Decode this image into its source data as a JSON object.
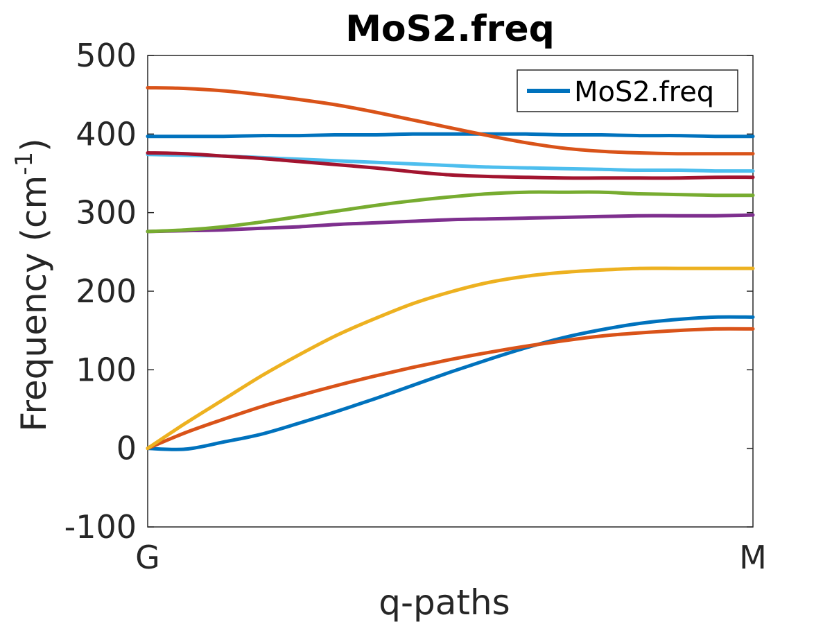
{
  "chart_data": {
    "type": "line",
    "title": "MoS2.freq",
    "xlabel": "q-paths",
    "ylabel": {
      "main": "Frequency (cm",
      "superscript": "-1",
      "close": ")"
    },
    "xlim": [
      0,
      1
    ],
    "ylim": [
      -100,
      500
    ],
    "x_ticks": [
      {
        "value": 0,
        "label": "G"
      },
      {
        "value": 1,
        "label": "M"
      }
    ],
    "y_ticks": [
      {
        "value": -100,
        "label": "-100"
      },
      {
        "value": 0,
        "label": "0"
      },
      {
        "value": 100,
        "label": "100"
      },
      {
        "value": 200,
        "label": "200"
      },
      {
        "value": 300,
        "label": "300"
      },
      {
        "value": 400,
        "label": "400"
      },
      {
        "value": 500,
        "label": "500"
      }
    ],
    "grid": false,
    "legend": {
      "position": "top-right",
      "entries": [
        {
          "label": "MoS2.freq",
          "color": "#0072BD"
        }
      ]
    },
    "x": [
      0,
      0.0625,
      0.125,
      0.1875,
      0.25,
      0.3125,
      0.375,
      0.4375,
      0.5,
      0.5625,
      0.625,
      0.6875,
      0.75,
      0.8125,
      0.875,
      0.9375,
      1
    ],
    "series": [
      {
        "color": "#0072BD",
        "values": [
          0,
          -1,
          8,
          18,
          32,
          47,
          63,
          80,
          97,
          113,
          128,
          141,
          151,
          159,
          164,
          167,
          167
        ]
      },
      {
        "color": "#D95319",
        "values": [
          0,
          20,
          37,
          53,
          67,
          80,
          92,
          103,
          113,
          122,
          130,
          137,
          143,
          147,
          150,
          152,
          152
        ]
      },
      {
        "color": "#EDB120",
        "values": [
          0,
          32,
          62,
          92,
          119,
          144,
          165,
          184,
          199,
          211,
          219,
          224,
          227,
          229,
          229,
          229,
          229
        ]
      },
      {
        "color": "#7E2F8E",
        "values": [
          276,
          277,
          278,
          280,
          282,
          285,
          287,
          289,
          291,
          292,
          293,
          294,
          295,
          296,
          296,
          296,
          297
        ]
      },
      {
        "color": "#77AC30",
        "values": [
          276,
          278,
          282,
          288,
          295,
          302,
          309,
          315,
          320,
          324,
          326,
          326,
          326,
          324,
          323,
          322,
          322
        ]
      },
      {
        "color": "#4DBEEE",
        "values": [
          374,
          373,
          372,
          370,
          368,
          366,
          364,
          362,
          360,
          358,
          357,
          356,
          355,
          354,
          354,
          353,
          353
        ]
      },
      {
        "color": "#A2142F",
        "values": [
          376,
          375,
          372,
          369,
          365,
          361,
          357,
          352,
          348,
          346,
          345,
          344,
          344,
          344,
          344,
          345,
          345
        ]
      },
      {
        "color": "#0072BD",
        "values": [
          397,
          397,
          397,
          398,
          398,
          399,
          399,
          400,
          400,
          400,
          400,
          399,
          399,
          398,
          398,
          397,
          397
        ]
      },
      {
        "color": "#D95319",
        "values": [
          459,
          458,
          455,
          450,
          444,
          437,
          428,
          418,
          408,
          398,
          389,
          382,
          378,
          376,
          375,
          375,
          375
        ]
      }
    ]
  }
}
